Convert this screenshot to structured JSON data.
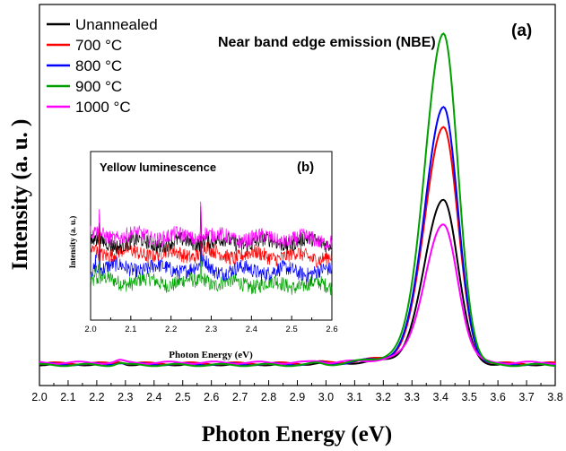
{
  "chart_data": [
    {
      "id": "main",
      "type": "line",
      "panel_label": "(a)",
      "title": "Near band edge emission (NBE)",
      "xlabel": "Photon Energy (eV)",
      "ylabel": "Intensity (a. u. )",
      "xlim": [
        2.0,
        3.8
      ],
      "ylim": [
        0,
        1
      ],
      "xticks": [
        "2.0",
        "2.1",
        "2.2",
        "2.3",
        "2.4",
        "2.5",
        "2.6",
        "2.7",
        "2.8",
        "2.9",
        "3.0",
        "3.1",
        "3.2",
        "3.3",
        "3.4",
        "3.5",
        "3.6",
        "3.7",
        "3.8"
      ],
      "yticks": [],
      "grid": false,
      "legend_position": "top-left",
      "peak_x": 3.41,
      "series": [
        {
          "name": "Unannealed",
          "color": "#000000",
          "baseline": 0.056,
          "peak": 0.49
        },
        {
          "name": "700 °C",
          "color": "#ff0000",
          "baseline": 0.058,
          "peak": 0.68
        },
        {
          "name": "800 °C",
          "color": "#0000ff",
          "baseline": 0.056,
          "peak": 0.73
        },
        {
          "name": "900 °C",
          "color": "#00a000",
          "baseline": 0.054,
          "peak": 0.92
        },
        {
          "name": "1000 °C",
          "color": "#ff00ff",
          "baseline": 0.06,
          "peak": 0.42
        }
      ]
    },
    {
      "id": "inset",
      "type": "line",
      "panel_label": "(b)",
      "title": "Yellow luminescence",
      "xlabel": "Photon Energy (eV)",
      "ylabel": "Intensity (a. u.)",
      "xlim": [
        2.0,
        2.6
      ],
      "ylim": [
        0,
        1
      ],
      "xticks": [
        "2.0",
        "2.1",
        "2.2",
        "2.3",
        "2.4",
        "2.5",
        "2.6"
      ],
      "yticks": [],
      "series": [
        {
          "name": "Unannealed",
          "color": "#000000",
          "level": 0.46
        },
        {
          "name": "700 °C",
          "color": "#ff0000",
          "level": 0.39
        },
        {
          "name": "800 °C",
          "color": "#0000ff",
          "level": 0.3
        },
        {
          "name": "900 °C",
          "color": "#00a000",
          "level": 0.22
        },
        {
          "name": "1000 °C",
          "color": "#ff00ff",
          "level": 0.49
        }
      ]
    }
  ]
}
